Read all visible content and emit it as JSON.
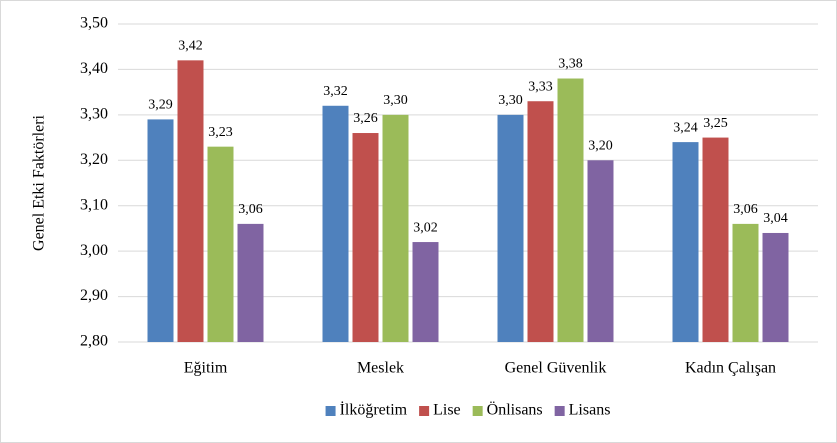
{
  "chart_data": {
    "type": "bar",
    "ylabel": "Genel Etki Faktörleri",
    "categories": [
      "Eğitim",
      "Meslek",
      "Genel Güvenlik",
      "Kadın Çalışan"
    ],
    "series": [
      {
        "name": "İlköğretim",
        "color": "#4f81bd",
        "values": [
          3.29,
          3.32,
          3.3,
          3.24
        ],
        "value_labels": [
          "3,29",
          "3,32",
          "3,30",
          "3,24"
        ]
      },
      {
        "name": "Lise",
        "color": "#c0504d",
        "values": [
          3.42,
          3.26,
          3.33,
          3.25
        ],
        "value_labels": [
          "3,42",
          "3,26",
          "3,33",
          "3,25"
        ]
      },
      {
        "name": "Önlisans",
        "color": "#9bbb59",
        "values": [
          3.23,
          3.3,
          3.38,
          3.06
        ],
        "value_labels": [
          "3,23",
          "3,30",
          "3,38",
          "3,06"
        ]
      },
      {
        "name": "Lisans",
        "color": "#8064a2",
        "values": [
          3.06,
          3.02,
          3.2,
          3.04
        ],
        "value_labels": [
          "3,06",
          "3,02",
          "3,20",
          "3,04"
        ]
      }
    ],
    "ylim": [
      2.8,
      3.5
    ],
    "yticks": [
      {
        "value": 2.8,
        "label": "2,80"
      },
      {
        "value": 2.9,
        "label": "2,90"
      },
      {
        "value": 3.0,
        "label": "3,00"
      },
      {
        "value": 3.1,
        "label": "3,10"
      },
      {
        "value": 3.2,
        "label": "3,20"
      },
      {
        "value": 3.3,
        "label": "3,30"
      },
      {
        "value": 3.4,
        "label": "3,40"
      },
      {
        "value": 3.5,
        "label": "3,50"
      }
    ],
    "grid": true,
    "legend": "bottom"
  }
}
